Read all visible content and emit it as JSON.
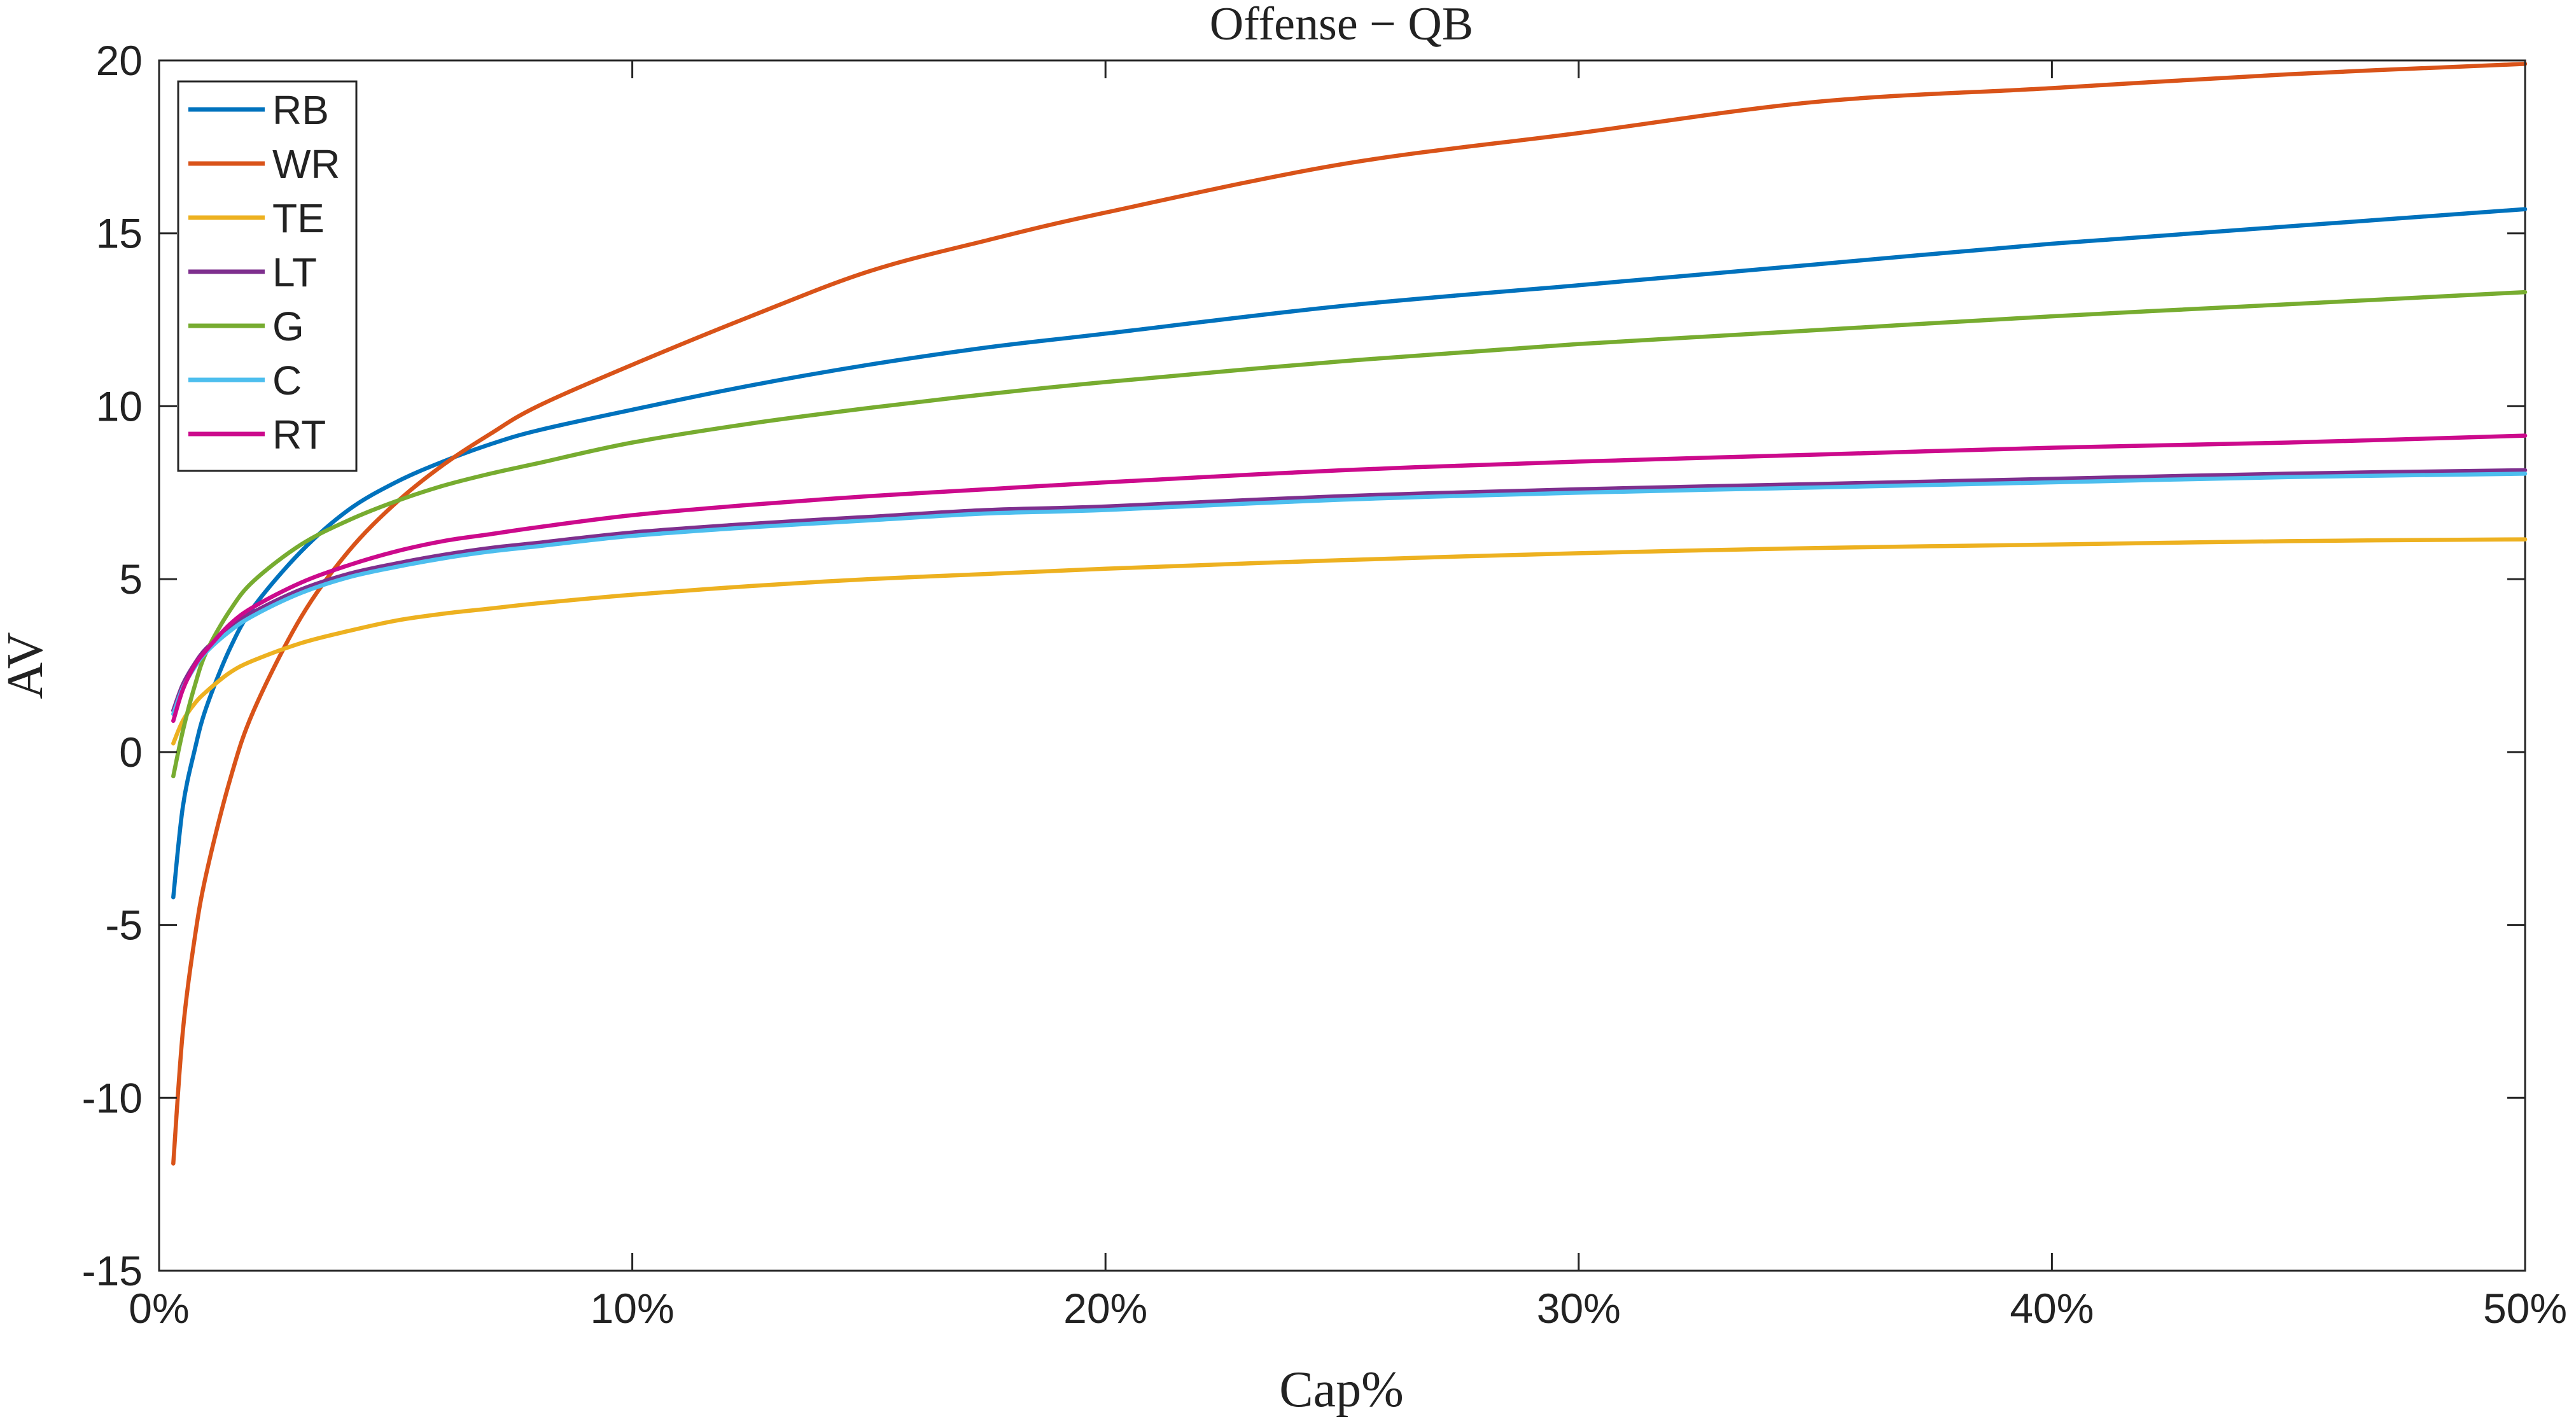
{
  "chart_data": {
    "type": "line",
    "title": "Offense − QB",
    "xlabel": "Cap%",
    "ylabel": "AV",
    "xlim": [
      0,
      50
    ],
    "ylim": [
      -15,
      20
    ],
    "x_ticks": [
      0,
      10,
      20,
      30,
      40,
      50
    ],
    "x_tick_labels": [
      "0%",
      "10%",
      "20%",
      "30%",
      "40%",
      "50%"
    ],
    "y_ticks": [
      20,
      15,
      10,
      5,
      0,
      -5,
      -10,
      -15
    ],
    "y_tick_labels": [
      "20",
      "15",
      "10",
      "5",
      "0",
      "-5",
      "-10",
      "-15"
    ],
    "grid": false,
    "legend_position": "top-left",
    "x": [
      0.3,
      0.5,
      0.75,
      1,
      1.5,
      2,
      3,
      4,
      5,
      6,
      7,
      8,
      10,
      12.5,
      15,
      17.5,
      20,
      25,
      30,
      35,
      40,
      45,
      50
    ],
    "series": [
      {
        "name": "RB",
        "color": "#0072BD",
        "values": [
          -4.2,
          -1.6,
          0.05,
          1.3,
          3.0,
          4.2,
          5.8,
          7.0,
          7.8,
          8.4,
          8.9,
          9.3,
          9.9,
          10.6,
          11.2,
          11.7,
          12.1,
          12.9,
          13.5,
          14.1,
          14.7,
          15.2,
          15.7
        ]
      },
      {
        "name": "WR",
        "color": "#D95319",
        "values": [
          -11.9,
          -8.1,
          -5.4,
          -3.5,
          -0.8,
          1.2,
          3.9,
          5.8,
          7.2,
          8.3,
          9.2,
          10.0,
          11.2,
          12.6,
          13.9,
          14.8,
          15.6,
          17.0,
          17.9,
          18.8,
          19.2,
          19.6,
          19.9
        ]
      },
      {
        "name": "TE",
        "color": "#EDB120",
        "values": [
          0.25,
          0.9,
          1.4,
          1.75,
          2.3,
          2.65,
          3.15,
          3.5,
          3.8,
          4.0,
          4.15,
          4.3,
          4.55,
          4.8,
          5.0,
          5.15,
          5.3,
          5.55,
          5.75,
          5.9,
          6.0,
          6.1,
          6.15
        ]
      },
      {
        "name": "LT",
        "color": "#7E2F8E",
        "values": [
          1.2,
          1.95,
          2.55,
          3.0,
          3.6,
          4.05,
          4.7,
          5.15,
          5.45,
          5.7,
          5.9,
          6.05,
          6.35,
          6.6,
          6.8,
          7.0,
          7.1,
          7.4,
          7.6,
          7.75,
          7.9,
          8.05,
          8.15
        ]
      },
      {
        "name": "G",
        "color": "#77AC30",
        "values": [
          -0.7,
          0.6,
          1.9,
          2.9,
          4.1,
          4.95,
          6.0,
          6.7,
          7.25,
          7.7,
          8.05,
          8.35,
          8.95,
          9.5,
          9.95,
          10.35,
          10.7,
          11.3,
          11.8,
          12.2,
          12.6,
          12.95,
          13.3
        ]
      },
      {
        "name": "C",
        "color": "#4DBEEE",
        "values": [
          1.1,
          1.85,
          2.45,
          2.9,
          3.5,
          3.95,
          4.6,
          5.05,
          5.35,
          5.6,
          5.8,
          5.95,
          6.25,
          6.5,
          6.7,
          6.9,
          7.0,
          7.3,
          7.5,
          7.65,
          7.8,
          7.95,
          8.05
        ]
      },
      {
        "name": "RT",
        "color": "#CC0A8C",
        "values": [
          0.9,
          1.8,
          2.5,
          2.95,
          3.7,
          4.2,
          4.9,
          5.4,
          5.8,
          6.1,
          6.3,
          6.5,
          6.85,
          7.15,
          7.4,
          7.6,
          7.8,
          8.15,
          8.4,
          8.6,
          8.8,
          8.95,
          9.15
        ]
      }
    ]
  }
}
